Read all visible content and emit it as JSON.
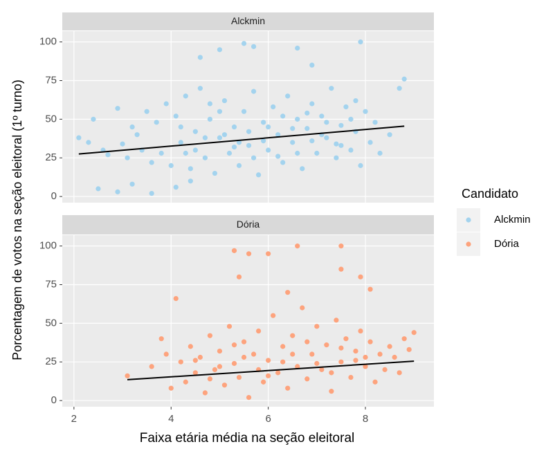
{
  "chart_data": {
    "type": "scatter",
    "xlabel": "Faixa etária média na seção eleitoral",
    "ylabel": "Porcentagem de votos na seção eleitoral (1º turno)",
    "legend_title": "Candidato",
    "legend": "right",
    "grid": true,
    "xlim": [
      1.76,
      9.41
    ],
    "xticks": [
      2,
      4,
      6,
      8
    ],
    "ylim": [
      -4,
      107
    ],
    "yticks": [
      0,
      25,
      50,
      75,
      100
    ],
    "series": [
      {
        "name": "Alckmin",
        "color": "#a3d3ee",
        "x": [
          2.1,
          2.3,
          2.4,
          2.6,
          2.7,
          2.9,
          3.0,
          3.1,
          3.2,
          3.3,
          3.4,
          3.5,
          3.6,
          3.7,
          3.8,
          3.9,
          4.0,
          4.1,
          4.2,
          4.3,
          4.4,
          4.5,
          4.6,
          4.7,
          4.8,
          4.9,
          5.0,
          5.1,
          5.2,
          5.3,
          5.4,
          5.5,
          5.6,
          5.7,
          5.8,
          5.9,
          6.0,
          6.1,
          6.2,
          6.3,
          6.4,
          6.5,
          6.6,
          6.7,
          6.8,
          6.9,
          7.0,
          7.1,
          7.2,
          7.3,
          7.4,
          7.5,
          7.6,
          7.7,
          7.8,
          7.9,
          8.0,
          8.1,
          8.2,
          8.3,
          8.5,
          8.7,
          8.8,
          4.2,
          4.5,
          4.8,
          5.1,
          5.4,
          5.7,
          6.0,
          6.3,
          6.6,
          6.9,
          7.2,
          7.5,
          7.8,
          4.3,
          4.7,
          5.0,
          5.3,
          5.6,
          5.9,
          6.2,
          6.5,
          6.8,
          7.1,
          7.4,
          7.7,
          4.6,
          5.0,
          5.5,
          5.7,
          6.6,
          6.9,
          7.9,
          2.5,
          2.9,
          3.2,
          3.6,
          4.1,
          4.4
        ],
        "y": [
          38,
          35,
          50,
          30,
          27,
          57,
          34,
          25,
          45,
          40,
          30,
          55,
          22,
          48,
          28,
          60,
          20,
          52,
          35,
          65,
          18,
          42,
          70,
          25,
          50,
          15,
          38,
          62,
          28,
          45,
          20,
          55,
          33,
          68,
          14,
          48,
          30,
          58,
          40,
          22,
          65,
          35,
          50,
          18,
          44,
          60,
          28,
          52,
          38,
          70,
          25,
          46,
          58,
          30,
          42,
          20,
          55,
          35,
          48,
          28,
          40,
          70,
          76,
          45,
          30,
          60,
          40,
          35,
          25,
          45,
          52,
          28,
          36,
          48,
          33,
          62,
          28,
          38,
          55,
          32,
          42,
          36,
          26,
          44,
          54,
          40,
          34,
          50,
          90,
          95,
          99,
          97,
          96,
          85,
          100,
          5,
          3,
          8,
          2,
          6,
          10
        ],
        "trend": {
          "x": [
            2.1,
            8.8
          ],
          "y": [
            27.5,
            45.5
          ]
        }
      },
      {
        "name": "Dória",
        "color": "#fda37d",
        "x": [
          3.1,
          3.6,
          3.8,
          3.9,
          4.0,
          4.1,
          4.2,
          4.3,
          4.4,
          4.5,
          4.6,
          4.7,
          4.8,
          4.9,
          5.0,
          5.1,
          5.2,
          5.3,
          5.4,
          5.5,
          5.6,
          5.7,
          5.8,
          5.9,
          6.0,
          6.1,
          6.2,
          6.3,
          6.4,
          6.5,
          6.6,
          6.7,
          6.8,
          6.9,
          7.0,
          7.1,
          7.2,
          7.3,
          7.4,
          7.5,
          7.6,
          7.7,
          7.8,
          7.9,
          8.0,
          8.1,
          8.2,
          8.3,
          8.4,
          8.5,
          8.6,
          8.7,
          8.8,
          8.9,
          9.0,
          4.5,
          5.0,
          5.5,
          6.0,
          6.5,
          7.0,
          7.5,
          8.0,
          4.8,
          5.3,
          5.8,
          6.3,
          6.8,
          7.3,
          7.8,
          5.3,
          5.6,
          6.0,
          6.6,
          7.5,
          7.5,
          7.9,
          8.1,
          5.4,
          6.4
        ],
        "y": [
          16,
          22,
          40,
          30,
          8,
          66,
          25,
          12,
          35,
          18,
          28,
          5,
          42,
          20,
          32,
          10,
          48,
          24,
          15,
          38,
          2,
          30,
          45,
          12,
          26,
          55,
          18,
          35,
          8,
          42,
          22,
          60,
          14,
          30,
          48,
          20,
          36,
          6,
          52,
          25,
          40,
          15,
          32,
          45,
          22,
          38,
          12,
          30,
          20,
          35,
          28,
          18,
          40,
          33,
          44,
          26,
          22,
          28,
          16,
          30,
          24,
          34,
          28,
          14,
          36,
          20,
          25,
          38,
          18,
          26,
          97,
          95,
          95,
          100,
          100,
          85,
          80,
          72,
          80,
          70
        ],
        "trend": {
          "x": [
            3.1,
            9.0
          ],
          "y": [
            13.5,
            25.5
          ]
        }
      }
    ]
  }
}
